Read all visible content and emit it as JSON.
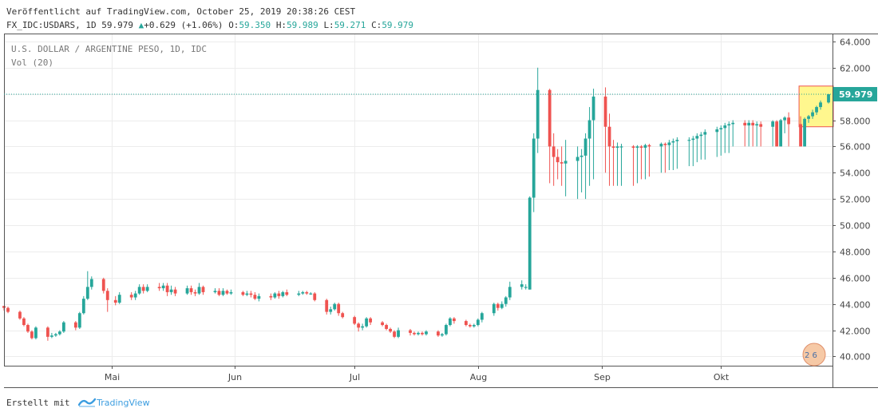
{
  "header": {
    "published": "Veröffentlicht auf TradingView.com, October 25, 2019 20:38:26 CEST",
    "symbol": "FX_IDC:USDARS, 1D",
    "last": "59.979",
    "change_arrow": "▲",
    "change": "+0.629 (+1.06%)",
    "open_label": "O:",
    "open": "59.350",
    "high_label": "H:",
    "high": "59.989",
    "low_label": "L:",
    "low": "59.271",
    "close_label": "C:",
    "close": "59.979"
  },
  "legend": {
    "title": "U.S. DOLLAR / ARGENTINE PESO, 1D, IDC",
    "volume": "Vol (20)"
  },
  "footer": {
    "made_with": "Erstellt mit",
    "brand": "TradingView"
  },
  "watermark": "2 6",
  "colors": {
    "up": "#26a69a",
    "down": "#ef5350",
    "price_line": "#26a69a",
    "highlight_fill": "#fff67a",
    "highlight_border": "#ef5350"
  },
  "chart_data": {
    "type": "candlestick",
    "title": "U.S. DOLLAR / ARGENTINE PESO, 1D, IDC",
    "y_range": [
      39.3,
      64.6
    ],
    "y_ticks": [
      "40.000",
      "42.000",
      "44.000",
      "46.000",
      "48.000",
      "50.000",
      "52.000",
      "54.000",
      "56.000",
      "58.000",
      "60.000",
      "62.000",
      "64.000"
    ],
    "x_ticks": [
      {
        "label": "Mai",
        "date": "2019-05-01"
      },
      {
        "label": "Jun",
        "date": "2019-06-01"
      },
      {
        "label": "Jul",
        "date": "2019-07-01"
      },
      {
        "label": "Aug",
        "date": "2019-08-01"
      },
      {
        "label": "Sep",
        "date": "2019-09-01"
      },
      {
        "label": "Okt",
        "date": "2019-10-01"
      }
    ],
    "x_range": [
      "2019-04-04",
      "2019-10-29"
    ],
    "last_price": 59.979,
    "highlight": {
      "date_from": "2019-10-21",
      "date_to": "2019-10-28",
      "price_low": 57.5,
      "price_high": 60.6
    },
    "candles": [
      [
        "2019-04-04",
        43.85,
        43.7,
        43.85,
        43.5
      ],
      [
        "2019-04-05",
        43.7,
        43.4,
        43.8,
        43.3
      ],
      [
        "2019-04-08",
        43.4,
        42.9,
        43.5,
        42.8
      ],
      [
        "2019-04-09",
        42.9,
        42.4,
        43.0,
        42.3
      ],
      [
        "2019-04-10",
        42.4,
        41.9,
        42.5,
        41.8
      ],
      [
        "2019-04-11",
        41.9,
        41.4,
        42.0,
        41.3
      ],
      [
        "2019-04-12",
        41.4,
        42.2,
        42.3,
        41.3
      ],
      [
        "2019-04-15",
        42.2,
        41.5,
        42.3,
        41.2
      ],
      [
        "2019-04-16",
        41.5,
        41.6,
        41.8,
        41.4
      ],
      [
        "2019-04-17",
        41.6,
        41.7,
        41.8,
        41.5
      ],
      [
        "2019-04-18",
        41.7,
        41.9,
        42.0,
        41.6
      ],
      [
        "2019-04-19",
        41.9,
        42.6,
        42.7,
        41.8
      ],
      [
        "2019-04-22",
        42.6,
        42.2,
        42.7,
        42.0
      ],
      [
        "2019-04-23",
        42.2,
        43.3,
        43.4,
        42.1
      ],
      [
        "2019-04-24",
        43.3,
        44.4,
        44.6,
        43.2
      ],
      [
        "2019-04-25",
        44.4,
        45.3,
        46.5,
        44.3
      ],
      [
        "2019-04-26",
        45.3,
        45.9,
        46.1,
        45.1
      ],
      [
        "2019-04-29",
        45.9,
        45.0,
        46.0,
        44.8
      ],
      [
        "2019-04-30",
        45.0,
        44.3,
        45.2,
        43.4
      ],
      [
        "2019-05-02",
        44.3,
        44.1,
        44.6,
        43.9
      ],
      [
        "2019-05-03",
        44.1,
        44.7,
        44.9,
        44.0
      ],
      [
        "2019-05-06",
        44.7,
        44.5,
        44.9,
        44.3
      ],
      [
        "2019-05-07",
        44.5,
        44.8,
        45.0,
        44.3
      ],
      [
        "2019-05-08",
        44.8,
        45.3,
        45.5,
        44.7
      ],
      [
        "2019-05-09",
        45.3,
        45.0,
        45.5,
        44.8
      ],
      [
        "2019-05-10",
        45.0,
        45.3,
        45.5,
        44.9
      ],
      [
        "2019-05-13",
        45.3,
        45.2,
        45.6,
        45.0
      ],
      [
        "2019-05-14",
        45.2,
        45.4,
        45.6,
        45.0
      ],
      [
        "2019-05-15",
        45.4,
        44.9,
        45.6,
        44.6
      ],
      [
        "2019-05-16",
        44.9,
        45.1,
        45.4,
        44.7
      ],
      [
        "2019-05-17",
        45.1,
        44.8,
        45.3,
        44.6
      ],
      [
        "2019-05-20",
        44.8,
        45.2,
        45.4,
        44.7
      ],
      [
        "2019-05-21",
        45.2,
        44.9,
        45.4,
        44.7
      ],
      [
        "2019-05-22",
        44.9,
        44.8,
        45.1,
        44.6
      ],
      [
        "2019-05-23",
        44.8,
        45.3,
        45.6,
        44.7
      ],
      [
        "2019-05-24",
        45.3,
        44.9,
        45.4,
        44.7
      ],
      [
        "2019-05-27",
        44.9,
        45.0,
        45.2,
        44.8
      ],
      [
        "2019-05-28",
        45.0,
        44.7,
        45.2,
        44.6
      ],
      [
        "2019-05-29",
        44.7,
        45.0,
        45.2,
        44.6
      ],
      [
        "2019-05-30",
        45.0,
        44.8,
        45.1,
        44.7
      ],
      [
        "2019-05-31",
        44.8,
        44.9,
        45.1,
        44.7
      ],
      [
        "2019-06-03",
        44.9,
        44.7,
        45.0,
        44.6
      ],
      [
        "2019-06-04",
        44.7,
        44.8,
        45.0,
        44.6
      ],
      [
        "2019-06-05",
        44.8,
        44.7,
        45.0,
        44.5
      ],
      [
        "2019-06-06",
        44.7,
        44.4,
        44.9,
        44.3
      ],
      [
        "2019-06-07",
        44.4,
        44.6,
        44.8,
        44.2
      ],
      [
        "2019-06-10",
        44.6,
        44.5,
        44.8,
        44.3
      ],
      [
        "2019-06-11",
        44.5,
        44.8,
        44.9,
        44.4
      ],
      [
        "2019-06-12",
        44.8,
        44.6,
        45.0,
        44.4
      ],
      [
        "2019-06-13",
        44.6,
        44.9,
        45.0,
        44.5
      ],
      [
        "2019-06-14",
        44.9,
        44.7,
        45.1,
        44.6
      ],
      [
        "2019-06-17",
        44.7,
        44.8,
        45.0,
        44.6
      ],
      [
        "2019-06-18",
        44.8,
        44.9,
        45.0,
        44.7
      ],
      [
        "2019-06-19",
        44.9,
        44.8,
        45.0,
        44.7
      ],
      [
        "2019-06-20",
        44.8,
        44.8,
        44.9,
        44.7
      ],
      [
        "2019-06-21",
        44.8,
        44.3,
        44.9,
        44.2
      ],
      [
        "2019-06-24",
        44.3,
        43.4,
        44.4,
        43.2
      ],
      [
        "2019-06-25",
        43.4,
        43.6,
        43.8,
        43.2
      ],
      [
        "2019-06-26",
        43.6,
        44.0,
        44.1,
        43.5
      ],
      [
        "2019-06-27",
        44.0,
        43.3,
        44.1,
        43.1
      ],
      [
        "2019-06-28",
        43.3,
        43.0,
        43.4,
        42.9
      ],
      [
        "2019-07-01",
        43.0,
        42.5,
        43.1,
        42.4
      ],
      [
        "2019-07-02",
        42.5,
        42.2,
        42.6,
        41.9
      ],
      [
        "2019-07-03",
        42.2,
        42.3,
        42.5,
        42.0
      ],
      [
        "2019-07-04",
        42.3,
        42.9,
        43.0,
        42.2
      ],
      [
        "2019-07-05",
        42.9,
        42.6,
        43.0,
        42.4
      ],
      [
        "2019-07-08",
        42.6,
        42.4,
        42.7,
        42.3
      ],
      [
        "2019-07-09",
        42.4,
        42.1,
        42.5,
        42.0
      ],
      [
        "2019-07-10",
        42.1,
        41.9,
        42.2,
        41.8
      ],
      [
        "2019-07-11",
        41.9,
        41.5,
        42.0,
        41.4
      ],
      [
        "2019-07-12",
        41.5,
        42.0,
        42.2,
        41.4
      ],
      [
        "2019-07-15",
        42.0,
        41.8,
        42.1,
        41.6
      ],
      [
        "2019-07-16",
        41.8,
        41.7,
        41.9,
        41.6
      ],
      [
        "2019-07-17",
        41.7,
        41.8,
        41.9,
        41.6
      ],
      [
        "2019-07-18",
        41.8,
        41.7,
        41.9,
        41.6
      ],
      [
        "2019-07-19",
        41.7,
        41.9,
        42.0,
        41.6
      ],
      [
        "2019-07-22",
        41.9,
        41.6,
        42.0,
        41.5
      ],
      [
        "2019-07-23",
        41.6,
        41.7,
        41.8,
        41.5
      ],
      [
        "2019-07-24",
        41.7,
        42.4,
        42.5,
        41.6
      ],
      [
        "2019-07-25",
        42.4,
        42.9,
        43.0,
        42.3
      ],
      [
        "2019-07-26",
        42.9,
        42.7,
        43.0,
        42.5
      ],
      [
        "2019-07-29",
        42.7,
        42.4,
        42.8,
        42.3
      ],
      [
        "2019-07-30",
        42.4,
        42.3,
        42.5,
        42.2
      ],
      [
        "2019-07-31",
        42.3,
        42.4,
        42.5,
        42.2
      ],
      [
        "2019-08-01",
        42.4,
        42.8,
        42.9,
        42.3
      ],
      [
        "2019-08-02",
        42.8,
        43.3,
        43.4,
        42.6
      ],
      [
        "2019-08-05",
        43.3,
        44.0,
        44.1,
        43.1
      ],
      [
        "2019-08-06",
        44.0,
        43.7,
        44.1,
        43.5
      ],
      [
        "2019-08-07",
        43.7,
        44.0,
        44.2,
        43.6
      ],
      [
        "2019-08-08",
        44.0,
        44.5,
        44.6,
        43.8
      ],
      [
        "2019-08-09",
        44.5,
        45.3,
        45.7,
        44.3
      ],
      [
        "2019-08-12",
        45.3,
        45.5,
        45.8,
        45.1
      ],
      [
        "2019-08-13",
        45.3,
        45.3,
        45.5,
        45.1
      ],
      [
        "2019-08-14",
        45.1,
        52.1,
        52.2,
        45.1
      ],
      [
        "2019-08-15",
        52.1,
        56.6,
        57.0,
        51.0
      ],
      [
        "2019-08-16",
        56.6,
        60.3,
        62.0,
        55.5
      ],
      [
        "2019-08-19",
        60.3,
        56.0,
        60.4,
        53.2
      ],
      [
        "2019-08-20",
        56.0,
        55.2,
        57.0,
        53.0
      ],
      [
        "2019-08-21",
        55.2,
        54.8,
        55.8,
        53.5
      ],
      [
        "2019-08-22",
        54.8,
        54.7,
        56.0,
        53.0
      ],
      [
        "2019-08-23",
        54.7,
        54.9,
        56.5,
        52.2
      ],
      [
        "2019-08-26",
        54.9,
        55.2,
        56.0,
        52.0
      ],
      [
        "2019-08-27",
        55.2,
        55.3,
        55.8,
        52.5
      ],
      [
        "2019-08-28",
        55.3,
        56.6,
        57.0,
        52.0
      ],
      [
        "2019-08-29",
        56.6,
        58.0,
        59.0,
        53.0
      ],
      [
        "2019-08-30",
        58.0,
        59.8,
        60.4,
        53.5
      ],
      [
        "2019-09-02",
        59.8,
        57.5,
        60.5,
        54.0
      ],
      [
        "2019-09-03",
        57.5,
        56.0,
        58.5,
        53.0
      ],
      [
        "2019-09-04",
        56.0,
        55.9,
        56.5,
        53.0
      ],
      [
        "2019-09-05",
        55.9,
        56.0,
        56.3,
        53.0
      ],
      [
        "2019-09-06",
        56.0,
        56.0,
        56.2,
        53.0
      ],
      [
        "2019-09-09",
        56.0,
        55.9,
        56.1,
        53.0
      ],
      [
        "2019-09-10",
        55.9,
        56.0,
        56.1,
        53.2
      ],
      [
        "2019-09-11",
        56.0,
        55.9,
        56.1,
        53.5
      ],
      [
        "2019-09-12",
        55.9,
        56.1,
        56.2,
        53.5
      ],
      [
        "2019-09-13",
        56.1,
        56.0,
        56.2,
        53.7
      ],
      [
        "2019-09-16",
        56.0,
        56.2,
        56.3,
        54.0
      ],
      [
        "2019-09-17",
        56.2,
        56.1,
        56.3,
        54.0
      ],
      [
        "2019-09-18",
        56.1,
        56.3,
        56.5,
        54.2
      ],
      [
        "2019-09-19",
        56.3,
        56.4,
        56.6,
        54.2
      ],
      [
        "2019-09-20",
        56.4,
        56.5,
        56.7,
        54.3
      ],
      [
        "2019-09-23",
        56.5,
        56.5,
        56.7,
        54.5
      ],
      [
        "2019-09-24",
        56.5,
        56.6,
        56.8,
        54.5
      ],
      [
        "2019-09-25",
        56.6,
        56.8,
        57.0,
        54.8
      ],
      [
        "2019-09-26",
        56.8,
        56.9,
        57.1,
        55.0
      ],
      [
        "2019-09-27",
        56.9,
        57.1,
        57.3,
        55.0
      ],
      [
        "2019-09-30",
        57.1,
        57.3,
        57.5,
        55.2
      ],
      [
        "2019-10-01",
        57.3,
        57.4,
        57.6,
        55.3
      ],
      [
        "2019-10-02",
        57.4,
        57.6,
        57.8,
        55.5
      ],
      [
        "2019-10-03",
        57.6,
        57.7,
        57.9,
        55.5
      ],
      [
        "2019-10-04",
        57.7,
        57.8,
        58.0,
        56.0
      ],
      [
        "2019-10-07",
        57.8,
        57.6,
        58.0,
        56.0
      ],
      [
        "2019-10-08",
        57.6,
        57.8,
        58.0,
        56.0
      ],
      [
        "2019-10-09",
        57.8,
        57.6,
        58.0,
        56.0
      ],
      [
        "2019-10-10",
        57.6,
        57.7,
        57.9,
        56.0
      ],
      [
        "2019-10-11",
        57.7,
        57.5,
        57.9,
        56.0
      ],
      [
        "2019-10-14",
        57.5,
        57.9,
        58.0,
        56.0
      ],
      [
        "2019-10-15",
        57.9,
        56.0,
        58.0,
        56.0
      ],
      [
        "2019-10-16",
        56.0,
        58.0,
        58.1,
        56.0
      ],
      [
        "2019-10-17",
        58.0,
        58.2,
        58.3,
        57.0
      ],
      [
        "2019-10-18",
        58.2,
        57.7,
        58.6,
        56.0
      ],
      [
        "2019-10-21",
        57.7,
        56.0,
        58.3,
        56.0
      ],
      [
        "2019-10-22",
        56.0,
        58.1,
        58.2,
        56.0
      ],
      [
        "2019-10-23",
        58.1,
        58.3,
        58.4,
        57.8
      ],
      [
        "2019-10-24",
        58.3,
        58.6,
        58.8,
        58.1
      ],
      [
        "2019-10-25",
        58.6,
        59.0,
        59.1,
        58.4
      ],
      [
        "2019-10-26",
        59.0,
        59.35,
        59.5,
        58.8
      ],
      [
        "2019-10-28",
        59.35,
        59.979,
        59.989,
        59.271
      ]
    ]
  }
}
